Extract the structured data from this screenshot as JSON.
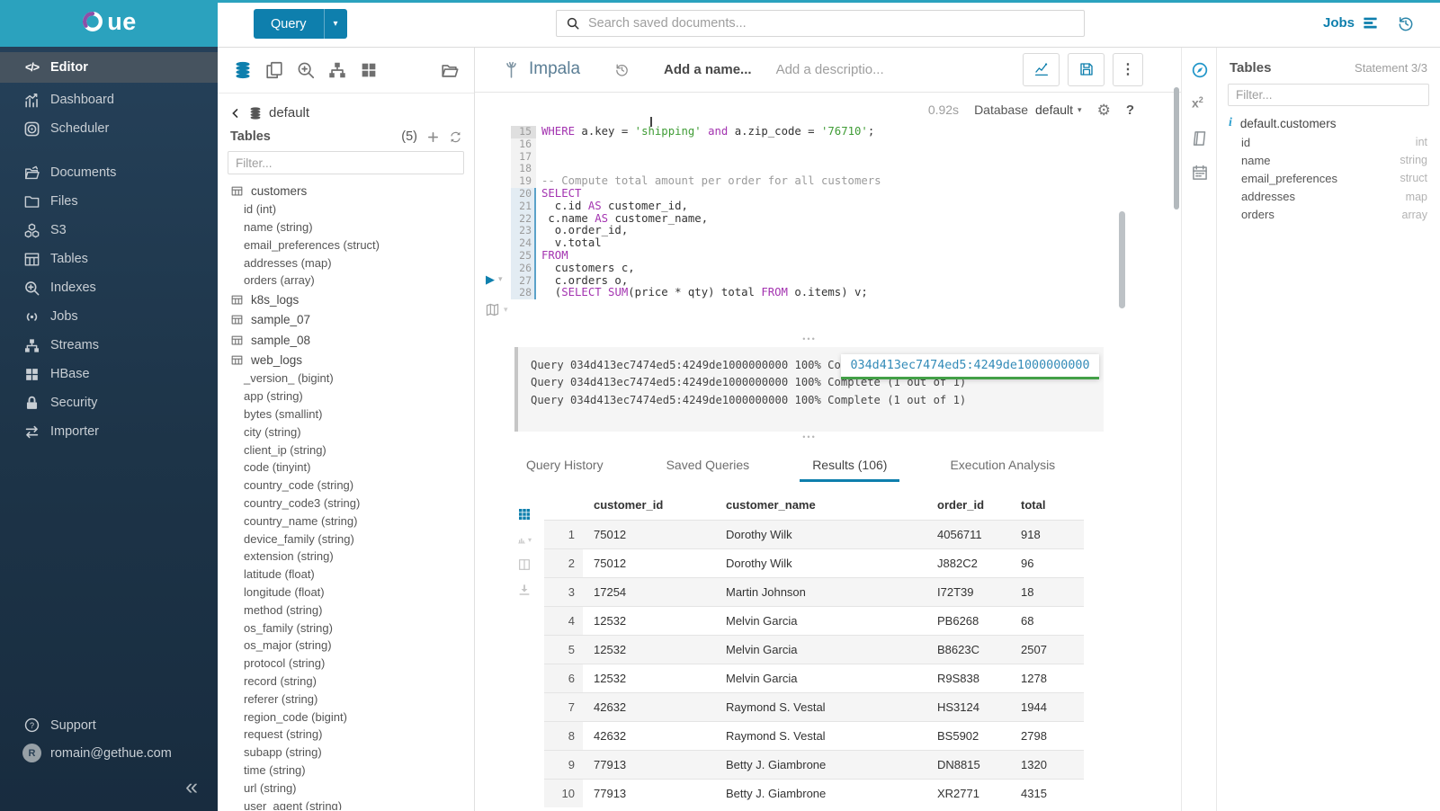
{
  "topbar": {
    "logo_text": "ue",
    "query_button": "Query",
    "search_placeholder": "Search saved documents...",
    "jobs_label": "Jobs"
  },
  "sidebar": {
    "items": [
      {
        "label": "Editor",
        "icon": "code-icon",
        "active": true
      },
      {
        "label": "Dashboard",
        "icon": "dashboard-icon"
      },
      {
        "label": "Scheduler",
        "icon": "scheduler-icon",
        "gap_after": true
      },
      {
        "label": "Documents",
        "icon": "documents-icon"
      },
      {
        "label": "Files",
        "icon": "files-icon"
      },
      {
        "label": "S3",
        "icon": "s3-icon"
      },
      {
        "label": "Tables",
        "icon": "tables-icon"
      },
      {
        "label": "Indexes",
        "icon": "indexes-icon"
      },
      {
        "label": "Jobs",
        "icon": "jobs-icon"
      },
      {
        "label": "Streams",
        "icon": "streams-icon"
      },
      {
        "label": "HBase",
        "icon": "hbase-icon"
      },
      {
        "label": "Security",
        "icon": "security-icon"
      },
      {
        "label": "Importer",
        "icon": "importer-icon"
      }
    ],
    "support": "Support",
    "user_email": "romain@gethue.com",
    "avatar_letter": "R"
  },
  "left_assist": {
    "toolbar_icons": [
      "db-icon",
      "copy-icon",
      "search-plus-icon",
      "sitemap-icon",
      "grid-icon",
      "folder-open-icon"
    ],
    "database": "default",
    "tables_title": "Tables",
    "tables_count": "(5)",
    "filter_placeholder": "Filter...",
    "tables": [
      {
        "name": "customers",
        "columns": [
          "id (int)",
          "name (string)",
          "email_preferences (struct)",
          "addresses (map)",
          "orders (array)"
        ]
      },
      {
        "name": "k8s_logs",
        "columns": []
      },
      {
        "name": "sample_07",
        "columns": []
      },
      {
        "name": "sample_08",
        "columns": []
      },
      {
        "name": "web_logs",
        "columns": [
          "_version_ (bigint)",
          "app (string)",
          "bytes (smallint)",
          "city (string)",
          "client_ip (string)",
          "code (tinyint)",
          "country_code (string)",
          "country_code3 (string)",
          "country_name (string)",
          "device_family (string)",
          "extension (string)",
          "latitude (float)",
          "longitude (float)",
          "method (string)",
          "os_family (string)",
          "os_major (string)",
          "protocol (string)",
          "record (string)",
          "referer (string)",
          "region_code (bigint)",
          "request (string)",
          "subapp (string)",
          "time (string)",
          "url (string)",
          "user_agent (string)"
        ]
      }
    ]
  },
  "editor": {
    "engine": "Impala",
    "name_placeholder": "Add a name...",
    "description_placeholder": "Add a descriptio...",
    "duration": "0.92s",
    "database_label": "Database",
    "database_value": "default",
    "code_lines": [
      {
        "n": "15",
        "cursor": true,
        "seg": [
          [
            "k",
            "WHERE"
          ],
          [
            "p",
            " a.key = "
          ],
          [
            "s",
            "'shipping'"
          ],
          [
            "p",
            " "
          ],
          [
            "k",
            "and"
          ],
          [
            "p",
            " a.zip_code = "
          ],
          [
            "s",
            "'76710'"
          ],
          [
            "p",
            ";"
          ]
        ]
      },
      {
        "n": "16",
        "seg": []
      },
      {
        "n": "17",
        "seg": []
      },
      {
        "n": "18",
        "seg": []
      },
      {
        "n": "19",
        "seg": [
          [
            "c",
            "-- Compute total amount per order for all customers"
          ]
        ]
      },
      {
        "n": "20",
        "stmt": true,
        "seg": [
          [
            "k",
            "SELECT"
          ]
        ]
      },
      {
        "n": "21",
        "stmt": true,
        "seg": [
          [
            "p",
            "  c.id "
          ],
          [
            "k",
            "AS"
          ],
          [
            "p",
            " customer_id,"
          ]
        ]
      },
      {
        "n": "22",
        "stmt": true,
        "seg": [
          [
            "p",
            " c.name "
          ],
          [
            "k",
            "AS"
          ],
          [
            "p",
            " customer_name,"
          ]
        ]
      },
      {
        "n": "23",
        "stmt": true,
        "seg": [
          [
            "p",
            "  o.order_id,"
          ]
        ]
      },
      {
        "n": "24",
        "stmt": true,
        "seg": [
          [
            "p",
            "  v.total"
          ]
        ]
      },
      {
        "n": "25",
        "stmt": true,
        "seg": [
          [
            "k",
            "FROM"
          ]
        ]
      },
      {
        "n": "26",
        "stmt": true,
        "seg": [
          [
            "p",
            "  customers c,"
          ]
        ]
      },
      {
        "n": "27",
        "stmt": true,
        "seg": [
          [
            "p",
            "  c.orders o,"
          ]
        ]
      },
      {
        "n": "28",
        "stmt": true,
        "seg": [
          [
            "p",
            "  ("
          ],
          [
            "k",
            "SELECT"
          ],
          [
            "p",
            " "
          ],
          [
            "k",
            "SUM"
          ],
          [
            "p",
            "(price * qty) total "
          ],
          [
            "k",
            "FROM"
          ],
          [
            "p",
            " o.items) v;"
          ]
        ]
      }
    ]
  },
  "logs": {
    "lines": [
      "Query 034d413ec7474ed5:4249de1000000000 100% Complete (1 out of 1)",
      "Query 034d413ec7474ed5:4249de1000000000 100% Complete (1 out of 1)",
      "Query 034d413ec7474ed5:4249de1000000000 100% Complete (1 out of 1)"
    ],
    "tooltip": "034d413ec7474ed5:4249de1000000000"
  },
  "result_tabs": [
    {
      "label": "Query History"
    },
    {
      "label": "Saved Queries"
    },
    {
      "label": "Results (106)",
      "active": true
    },
    {
      "label": "Execution Analysis"
    }
  ],
  "results": {
    "columns": [
      "customer_id",
      "customer_name",
      "order_id",
      "total"
    ],
    "rows": [
      [
        "1",
        "75012",
        "Dorothy Wilk",
        "4056711",
        "918"
      ],
      [
        "2",
        "75012",
        "Dorothy Wilk",
        "J882C2",
        "96"
      ],
      [
        "3",
        "17254",
        "Martin Johnson",
        "I72T39",
        "18"
      ],
      [
        "4",
        "12532",
        "Melvin Garcia",
        "PB6268",
        "68"
      ],
      [
        "5",
        "12532",
        "Melvin Garcia",
        "B8623C",
        "2507"
      ],
      [
        "6",
        "12532",
        "Melvin Garcia",
        "R9S838",
        "1278"
      ],
      [
        "7",
        "42632",
        "Raymond S. Vestal",
        "HS3124",
        "1944"
      ],
      [
        "8",
        "42632",
        "Raymond S. Vestal",
        "BS5902",
        "2798"
      ],
      [
        "9",
        "77913",
        "Betty J. Giambrone",
        "DN8815",
        "1320"
      ],
      [
        "10",
        "77913",
        "Betty J. Giambrone",
        "XR2771",
        "4315"
      ]
    ]
  },
  "right_assist": {
    "title": "Tables",
    "statement": "Statement 3/3",
    "filter_placeholder": "Filter...",
    "table_name": "default.customers",
    "columns": [
      {
        "name": "id",
        "type": "int"
      },
      {
        "name": "name",
        "type": "string"
      },
      {
        "name": "email_preferences",
        "type": "struct"
      },
      {
        "name": "addresses",
        "type": "map"
      },
      {
        "name": "orders",
        "type": "array"
      }
    ]
  },
  "accent_colors": {
    "brand_cyan": "#2BA2BE",
    "primary_blue": "#0E7FAD",
    "link_blue": "#338BB8",
    "success_green": "#43A047"
  }
}
